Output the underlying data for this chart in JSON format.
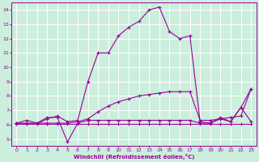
{
  "xlabel": "Windchill (Refroidissement éolien,°C)",
  "bg_color": "#cceedd",
  "grid_color": "#ffffff",
  "line_color": "#990099",
  "xlim": [
    -0.5,
    23.5
  ],
  "ylim": [
    4.5,
    14.5
  ],
  "xticks": [
    0,
    1,
    2,
    3,
    4,
    5,
    6,
    7,
    8,
    9,
    10,
    11,
    12,
    13,
    14,
    15,
    16,
    17,
    18,
    19,
    20,
    21,
    22,
    23
  ],
  "yticks": [
    5,
    6,
    7,
    8,
    9,
    10,
    11,
    12,
    13,
    14
  ],
  "line1_x": [
    0,
    1,
    2,
    3,
    4,
    5,
    6,
    7,
    8,
    9,
    10,
    11,
    12,
    13,
    14,
    15,
    16,
    17,
    18,
    19,
    20,
    21,
    22,
    23
  ],
  "line1_y": [
    6.05,
    6.05,
    6.05,
    6.05,
    6.05,
    6.05,
    6.05,
    6.05,
    6.05,
    6.05,
    6.05,
    6.05,
    6.05,
    6.05,
    6.05,
    6.05,
    6.05,
    6.05,
    6.05,
    6.05,
    6.05,
    6.05,
    6.05,
    6.05
  ],
  "line2_x": [
    0,
    1,
    2,
    3,
    4,
    5,
    6,
    7,
    8,
    9,
    10,
    11,
    12,
    13,
    14,
    15,
    16,
    17,
    18,
    19,
    20,
    21,
    22,
    23
  ],
  "line2_y": [
    6.1,
    6.3,
    6.1,
    6.5,
    6.5,
    4.8,
    6.1,
    6.3,
    6.3,
    6.3,
    6.3,
    6.3,
    6.3,
    6.3,
    6.3,
    6.3,
    6.3,
    6.3,
    6.1,
    6.1,
    6.5,
    6.2,
    7.2,
    6.2
  ],
  "line3_x": [
    0,
    1,
    2,
    3,
    4,
    5,
    6,
    7,
    8,
    9,
    10,
    11,
    12,
    13,
    14,
    15,
    16,
    17,
    18,
    19,
    20,
    21,
    22,
    23
  ],
  "line3_y": [
    6.1,
    6.1,
    6.1,
    6.1,
    6.1,
    6.1,
    6.2,
    6.4,
    6.9,
    7.3,
    7.6,
    7.8,
    8.0,
    8.1,
    8.2,
    8.3,
    8.3,
    8.3,
    6.3,
    6.3,
    6.4,
    6.5,
    6.6,
    8.5
  ],
  "line4_x": [
    0,
    1,
    2,
    3,
    4,
    5,
    6,
    7,
    8,
    9,
    10,
    11,
    12,
    13,
    14,
    15,
    16,
    17,
    18,
    19,
    20,
    21,
    22,
    23
  ],
  "line4_y": [
    6.05,
    6.05,
    6.05,
    6.4,
    6.6,
    6.2,
    6.3,
    9.0,
    11.0,
    11.0,
    12.2,
    12.8,
    13.2,
    14.0,
    14.2,
    12.5,
    12.0,
    12.2,
    6.2,
    6.1,
    6.4,
    6.2,
    7.2,
    8.5
  ]
}
